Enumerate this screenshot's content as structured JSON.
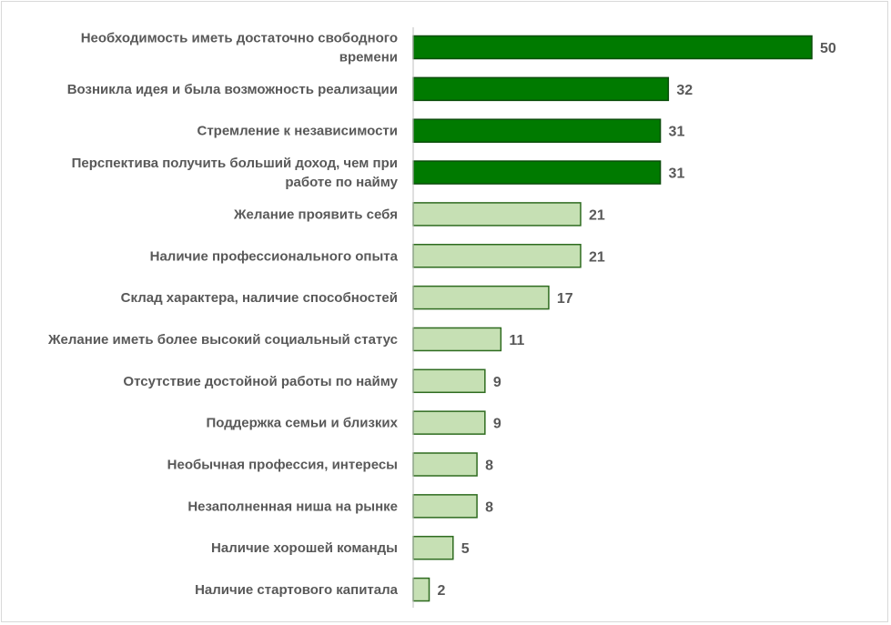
{
  "chart_data": {
    "type": "bar",
    "orientation": "horizontal",
    "title": "",
    "xlabel": "",
    "ylabel": "",
    "xlim": [
      0,
      50
    ],
    "grid": false,
    "legend": "none",
    "categories": [
      [
        "Необходимость иметь достаточно свободного",
        "времени"
      ],
      [
        "Возникла идея и была возможность реализации"
      ],
      [
        "Стремление к независимости"
      ],
      [
        "Перспектива получить больший доход, чем при",
        "работе по найму"
      ],
      [
        "Желание проявить себя"
      ],
      [
        "Наличие профессионального опыта"
      ],
      [
        "Склад характера, наличие способностей"
      ],
      [
        "Желание иметь более высокий социальный статус"
      ],
      [
        "Отсутствие достойной работы по найму"
      ],
      [
        "Поддержка семьи и близких"
      ],
      [
        "Необычная профессия, интересы"
      ],
      [
        "Незаполненная ниша на рынке"
      ],
      [
        "Наличие хорошей команды"
      ],
      [
        "Наличие стартового капитала"
      ]
    ],
    "values": [
      50,
      32,
      31,
      31,
      21,
      21,
      17,
      11,
      9,
      9,
      8,
      8,
      5,
      2
    ],
    "highlight_count": 4,
    "colors": {
      "highlight_fill": "#007a00",
      "highlight_stroke": "#0b4d0b",
      "normal_fill": "#c6e0b4",
      "normal_stroke": "#2e6b1f",
      "axis": "#bfbfbf",
      "text": "#595959"
    }
  }
}
